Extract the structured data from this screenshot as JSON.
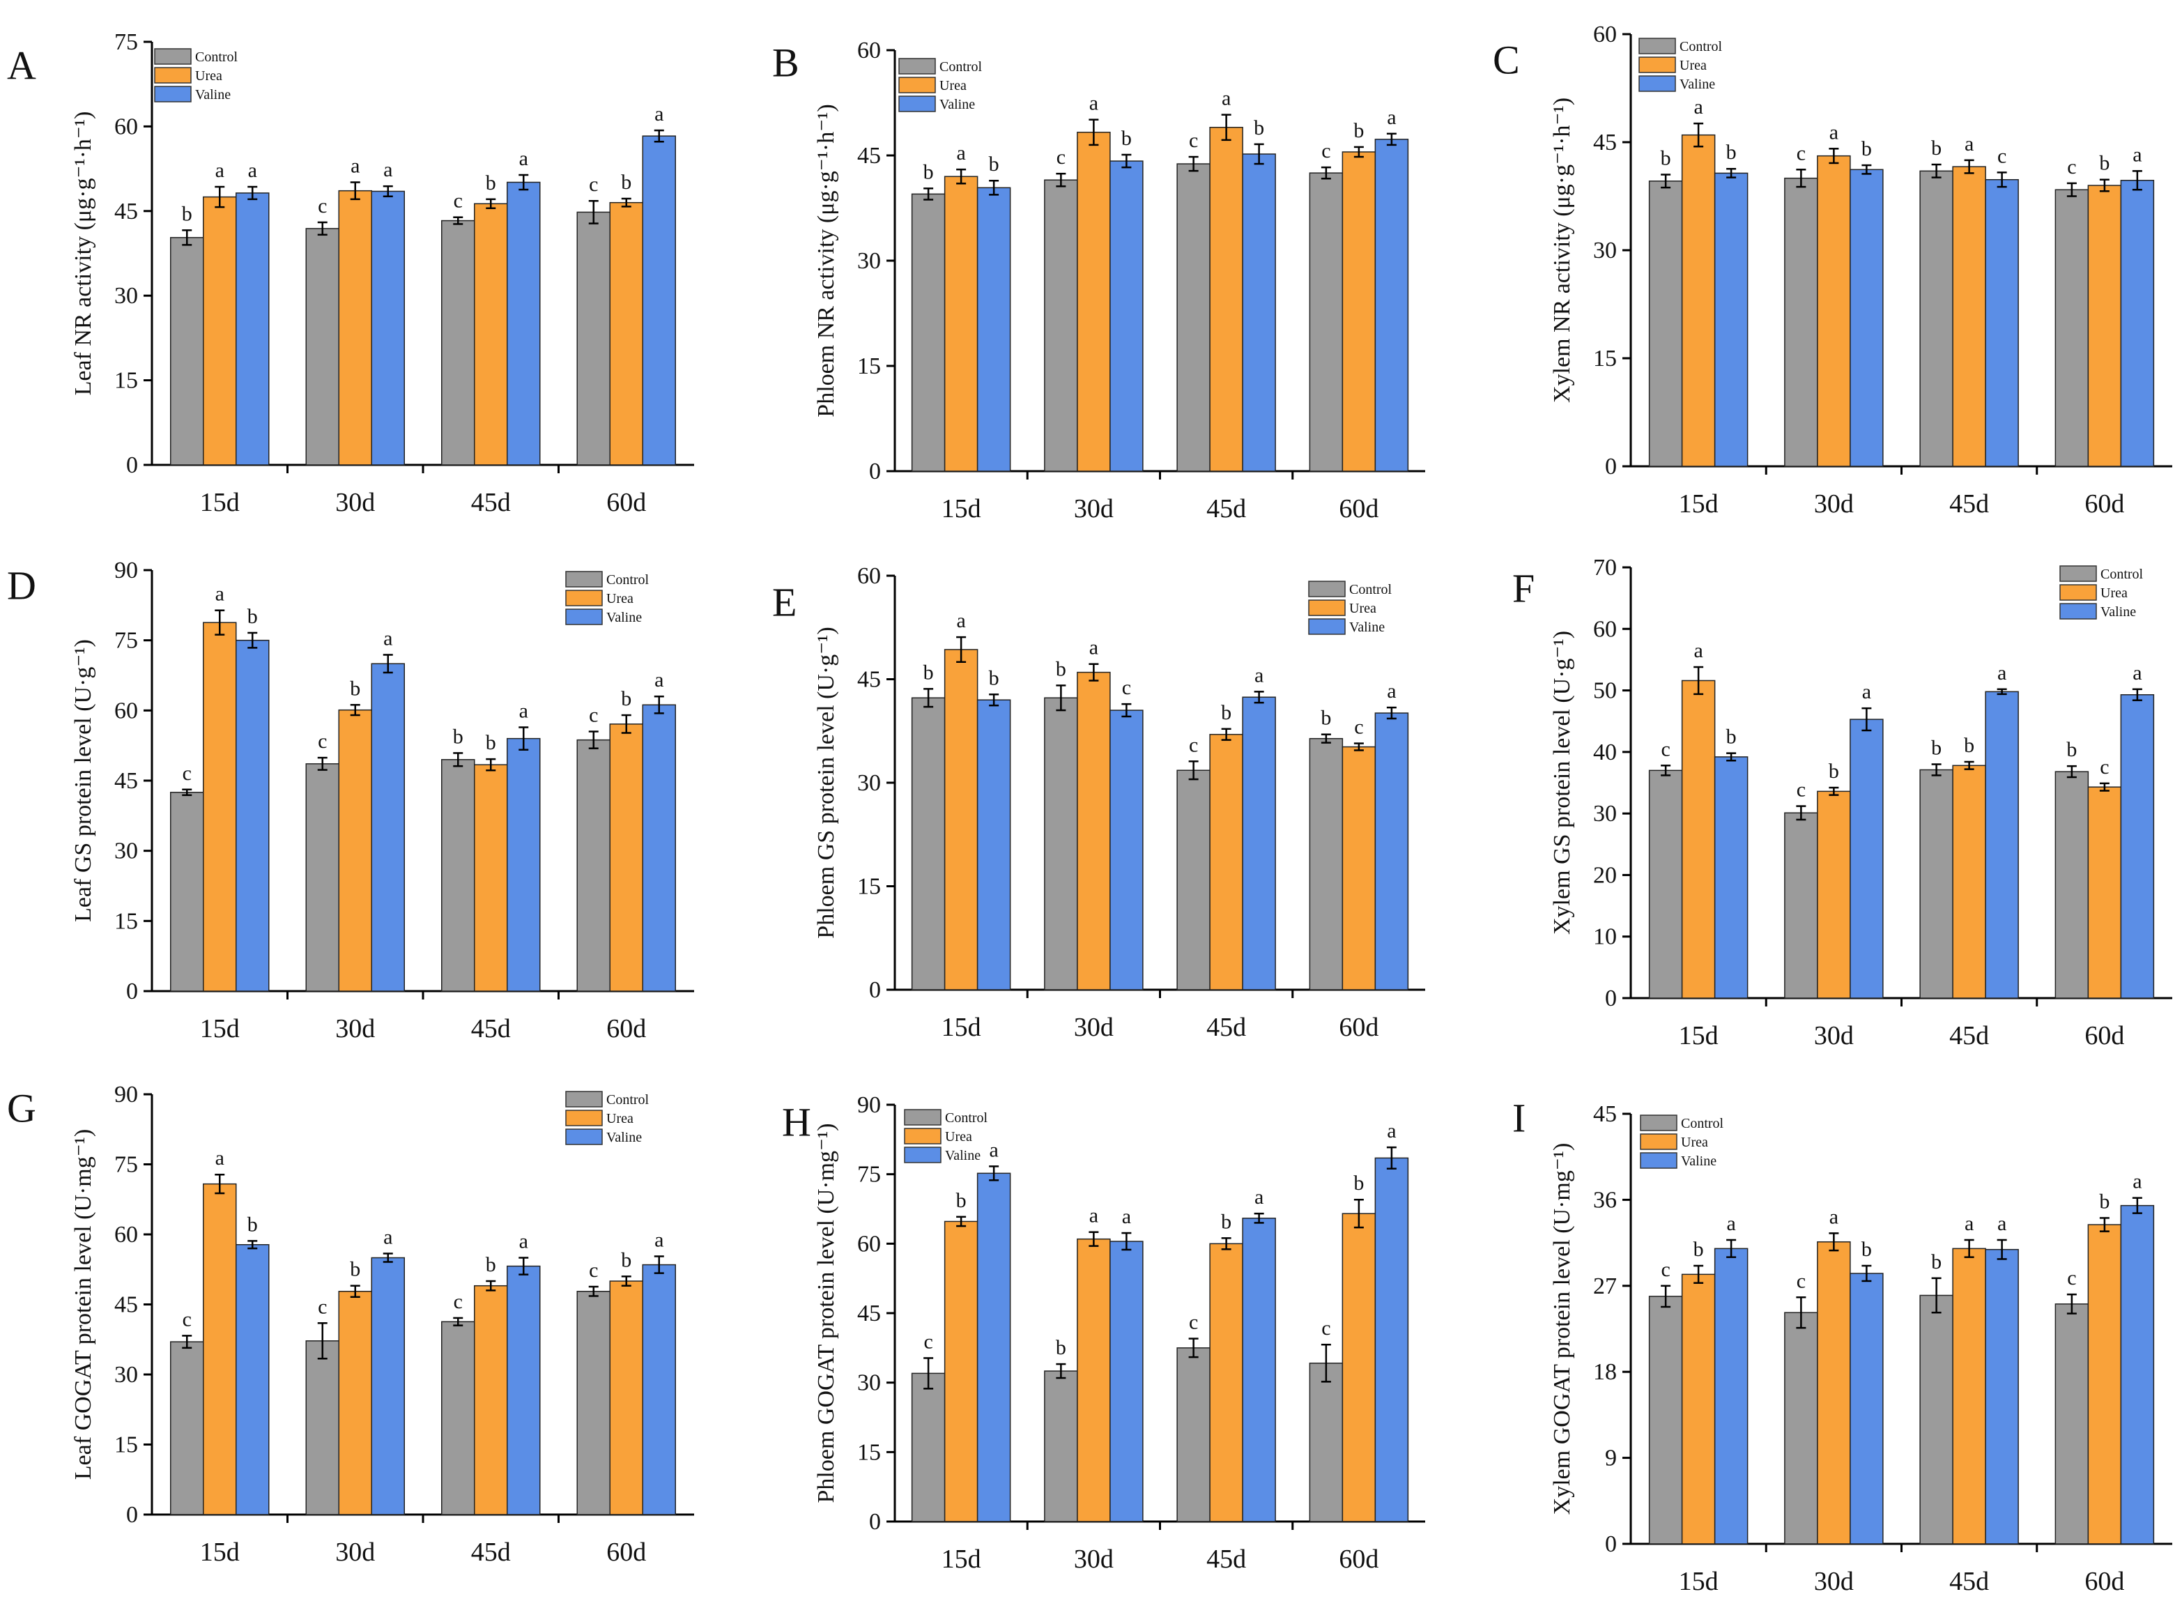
{
  "colors": {
    "Control": "#9b9b9b",
    "Urea": "#f9a23a",
    "Valine": "#5b8ee6"
  },
  "chart_data": [
    {
      "panel": "A",
      "type": "bar",
      "ylabel": "Leaf NR activity  (μg·g⁻¹·h⁻¹)",
      "ylim": [
        0,
        75
      ],
      "yticks": [
        0,
        15,
        30,
        45,
        60,
        75
      ],
      "categories": [
        "15d",
        "30d",
        "45d",
        "60d"
      ],
      "legend": [
        "Control",
        "Urea",
        "Valine"
      ],
      "legend_position": "top-left",
      "series": [
        {
          "name": "Control",
          "values": [
            40.3,
            41.9,
            43.3,
            44.8
          ],
          "errors": [
            1.3,
            1.1,
            0.6,
            2.0
          ],
          "letters": [
            "b",
            "c",
            "c",
            "c"
          ]
        },
        {
          "name": "Urea",
          "values": [
            47.5,
            48.6,
            46.3,
            46.5
          ],
          "errors": [
            1.8,
            1.5,
            0.8,
            0.7
          ],
          "letters": [
            "a",
            "a",
            "b",
            "b"
          ]
        },
        {
          "name": "Valine",
          "values": [
            48.2,
            48.5,
            50.1,
            58.3
          ],
          "errors": [
            1.1,
            0.9,
            1.3,
            1.0
          ],
          "letters": [
            "a",
            "a",
            "a",
            "a"
          ]
        }
      ]
    },
    {
      "panel": "B",
      "type": "bar",
      "ylabel": "Phloem NR activity  (μg·g⁻¹·h⁻¹)",
      "ylim": [
        0,
        60
      ],
      "yticks": [
        0,
        15,
        30,
        45,
        60
      ],
      "categories": [
        "15d",
        "30d",
        "45d",
        "60d"
      ],
      "legend": [
        "Control",
        "Urea",
        "Valine"
      ],
      "legend_position": "top-left",
      "series": [
        {
          "name": "Control",
          "values": [
            39.5,
            41.5,
            43.8,
            42.5
          ],
          "errors": [
            0.8,
            0.9,
            1.0,
            0.8
          ],
          "letters": [
            "b",
            "c",
            "c",
            "c"
          ]
        },
        {
          "name": "Urea",
          "values": [
            42.0,
            48.3,
            49.0,
            45.5
          ],
          "errors": [
            1.0,
            1.8,
            1.8,
            0.7
          ],
          "letters": [
            "a",
            "a",
            "a",
            "b"
          ]
        },
        {
          "name": "Valine",
          "values": [
            40.4,
            44.2,
            45.2,
            47.3
          ],
          "errors": [
            1.0,
            0.9,
            1.4,
            0.8
          ],
          "letters": [
            "b",
            "b",
            "b",
            "a"
          ]
        }
      ]
    },
    {
      "panel": "C",
      "type": "bar",
      "ylabel": "Xylem NR activity  (μg·g⁻¹·h⁻¹)",
      "ylim": [
        0,
        60
      ],
      "yticks": [
        0,
        15,
        30,
        45,
        60
      ],
      "categories": [
        "15d",
        "30d",
        "45d",
        "60d"
      ],
      "legend": [
        "Control",
        "Urea",
        "Valine"
      ],
      "legend_position": "top-left",
      "series": [
        {
          "name": "Control",
          "values": [
            39.6,
            40.0,
            41.0,
            38.4
          ],
          "errors": [
            0.9,
            1.2,
            0.9,
            0.9
          ],
          "letters": [
            "b",
            "c",
            "b",
            "c"
          ]
        },
        {
          "name": "Urea",
          "values": [
            46.0,
            43.1,
            41.6,
            39.0
          ],
          "errors": [
            1.6,
            1.0,
            0.9,
            0.8
          ],
          "letters": [
            "a",
            "a",
            "a",
            "b"
          ]
        },
        {
          "name": "Valine",
          "values": [
            40.7,
            41.2,
            39.8,
            39.7
          ],
          "errors": [
            0.6,
            0.6,
            1.0,
            1.3
          ],
          "letters": [
            "b",
            "b",
            "c",
            "a"
          ]
        }
      ]
    },
    {
      "panel": "D",
      "type": "bar",
      "ylabel": "Leaf  GS protein level (U·g⁻¹)",
      "ylim": [
        0,
        90
      ],
      "yticks": [
        0,
        15,
        30,
        45,
        60,
        75,
        90
      ],
      "categories": [
        "15d",
        "30d",
        "45d",
        "60d"
      ],
      "legend": [
        "Control",
        "Urea",
        "Valine"
      ],
      "legend_position": "top-right",
      "series": [
        {
          "name": "Control",
          "values": [
            42.5,
            48.6,
            49.5,
            53.7
          ],
          "errors": [
            0.6,
            1.3,
            1.4,
            1.8
          ],
          "letters": [
            "c",
            "c",
            "b",
            "c"
          ]
        },
        {
          "name": "Urea",
          "values": [
            78.8,
            60.1,
            48.4,
            57.1
          ],
          "errors": [
            2.6,
            1.1,
            1.2,
            1.9
          ],
          "letters": [
            "a",
            "b",
            "b",
            "b"
          ]
        },
        {
          "name": "Valine",
          "values": [
            75.0,
            70.0,
            54.0,
            61.2
          ],
          "errors": [
            1.6,
            1.9,
            2.4,
            1.8
          ],
          "letters": [
            "b",
            "a",
            "a",
            "a"
          ]
        }
      ]
    },
    {
      "panel": "E",
      "type": "bar",
      "ylabel": "Phloem GS protein level (U·g⁻¹)",
      "ylim": [
        0,
        60
      ],
      "yticks": [
        0,
        15,
        30,
        45,
        60
      ],
      "categories": [
        "15d",
        "30d",
        "45d",
        "60d"
      ],
      "legend": [
        "Control",
        "Urea",
        "Valine"
      ],
      "legend_position": "top-right",
      "series": [
        {
          "name": "Control",
          "values": [
            42.3,
            42.3,
            31.8,
            36.4
          ],
          "errors": [
            1.3,
            1.8,
            1.3,
            0.6
          ],
          "letters": [
            "b",
            "b",
            "c",
            "b"
          ]
        },
        {
          "name": "Urea",
          "values": [
            49.3,
            46.0,
            37.0,
            35.2
          ],
          "errors": [
            1.8,
            1.2,
            0.8,
            0.5
          ],
          "letters": [
            "a",
            "a",
            "b",
            "c"
          ]
        },
        {
          "name": "Valine",
          "values": [
            42.0,
            40.5,
            42.4,
            40.1
          ],
          "errors": [
            0.8,
            0.9,
            0.8,
            0.8
          ],
          "letters": [
            "b",
            "c",
            "a",
            "a"
          ]
        }
      ]
    },
    {
      "panel": "F",
      "type": "bar",
      "ylabel": "Xylem GS protein level (U·g⁻¹)",
      "ylim": [
        0,
        70
      ],
      "yticks": [
        0,
        10,
        20,
        30,
        40,
        50,
        60,
        70
      ],
      "categories": [
        "15d",
        "30d",
        "45d",
        "60d"
      ],
      "legend": [
        "Control",
        "Urea",
        "Valine"
      ],
      "legend_position": "top-right",
      "series": [
        {
          "name": "Control",
          "values": [
            37.0,
            30.1,
            37.1,
            36.8
          ],
          "errors": [
            0.8,
            1.1,
            0.9,
            0.9
          ],
          "letters": [
            "c",
            "c",
            "b",
            "b"
          ]
        },
        {
          "name": "Urea",
          "values": [
            51.6,
            33.6,
            37.8,
            34.3
          ],
          "errors": [
            2.2,
            0.6,
            0.6,
            0.6
          ],
          "letters": [
            "a",
            "b",
            "b",
            "c"
          ]
        },
        {
          "name": "Valine",
          "values": [
            39.2,
            45.3,
            49.8,
            49.3
          ],
          "errors": [
            0.6,
            1.8,
            0.4,
            0.9
          ],
          "letters": [
            "b",
            "a",
            "a",
            "a"
          ]
        }
      ]
    },
    {
      "panel": "G",
      "type": "bar",
      "ylabel": "Leaf GOGAT protein level (U·mg⁻¹)",
      "ylim": [
        0,
        90
      ],
      "yticks": [
        0,
        15,
        30,
        45,
        60,
        75,
        90
      ],
      "categories": [
        "15d",
        "30d",
        "45d",
        "60d"
      ],
      "legend": [
        "Control",
        "Urea",
        "Valine"
      ],
      "legend_position": "top-right",
      "series": [
        {
          "name": "Control",
          "values": [
            37.0,
            37.2,
            41.3,
            47.8
          ],
          "errors": [
            1.3,
            3.8,
            0.8,
            1.0
          ],
          "letters": [
            "c",
            "c",
            "c",
            "c"
          ]
        },
        {
          "name": "Urea",
          "values": [
            70.8,
            47.8,
            49.0,
            50.0
          ],
          "errors": [
            2.0,
            1.2,
            1.0,
            1.0
          ],
          "letters": [
            "a",
            "b",
            "b",
            "b"
          ]
        },
        {
          "name": "Valine",
          "values": [
            57.8,
            55.0,
            53.2,
            53.5
          ],
          "errors": [
            0.8,
            0.9,
            1.8,
            1.8
          ],
          "letters": [
            "b",
            "a",
            "a",
            "a"
          ]
        }
      ]
    },
    {
      "panel": "H",
      "type": "bar",
      "ylabel": "Phloem GOGAT protein level (U·mg⁻¹)",
      "ylim": [
        0,
        90
      ],
      "yticks": [
        0,
        15,
        30,
        45,
        60,
        75,
        90
      ],
      "categories": [
        "15d",
        "30d",
        "45d",
        "60d"
      ],
      "legend": [
        "Control",
        "Urea",
        "Valine"
      ],
      "legend_position": "top-left",
      "series": [
        {
          "name": "Control",
          "values": [
            32.0,
            32.5,
            37.5,
            34.2
          ],
          "errors": [
            3.3,
            1.5,
            2.0,
            4.0
          ],
          "letters": [
            "c",
            "b",
            "c",
            "c"
          ]
        },
        {
          "name": "Urea",
          "values": [
            64.8,
            61.0,
            60.0,
            66.5
          ],
          "errors": [
            1.0,
            1.5,
            1.2,
            3.0
          ],
          "letters": [
            "b",
            "a",
            "b",
            "b"
          ]
        },
        {
          "name": "Valine",
          "values": [
            75.2,
            60.5,
            65.5,
            78.5
          ],
          "errors": [
            1.5,
            1.8,
            1.0,
            2.3
          ],
          "letters": [
            "a",
            "a",
            "a",
            "a"
          ]
        }
      ]
    },
    {
      "panel": "I",
      "type": "bar",
      "ylabel": "Xylem GOGAT protein level (U·mg⁻¹)",
      "ylim": [
        0,
        45
      ],
      "yticks": [
        0,
        9,
        18,
        27,
        36,
        45
      ],
      "categories": [
        "15d",
        "30d",
        "45d",
        "60d"
      ],
      "legend": [
        "Control",
        "Urea",
        "Valine"
      ],
      "legend_position": "top-left",
      "series": [
        {
          "name": "Control",
          "values": [
            25.9,
            24.2,
            26.0,
            25.1
          ],
          "errors": [
            1.1,
            1.6,
            1.8,
            1.0
          ],
          "letters": [
            "c",
            "c",
            "b",
            "c"
          ]
        },
        {
          "name": "Urea",
          "values": [
            28.2,
            31.6,
            30.9,
            33.4
          ],
          "errors": [
            0.9,
            0.9,
            0.9,
            0.7
          ],
          "letters": [
            "b",
            "a",
            "a",
            "b"
          ]
        },
        {
          "name": "Valine",
          "values": [
            30.9,
            28.3,
            30.8,
            35.4
          ],
          "errors": [
            0.9,
            0.8,
            1.0,
            0.8
          ],
          "letters": [
            "a",
            "b",
            "a",
            "a"
          ]
        }
      ]
    }
  ]
}
